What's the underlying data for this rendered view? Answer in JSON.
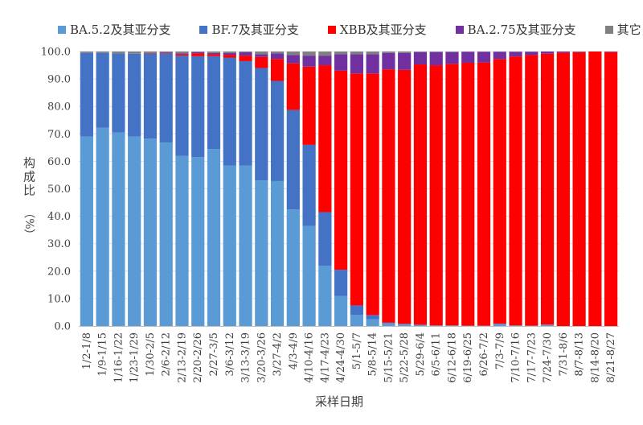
{
  "chart_data": {
    "type": "bar",
    "stacked": true,
    "title": "",
    "xlabel": "采样日期",
    "ylabel": "构成比（%）",
    "ylabel_main": "构成比",
    "ylabel_unit": "（%）",
    "ylim": [
      0,
      100
    ],
    "yticks": [
      "0.0",
      "10.0",
      "20.0",
      "30.0",
      "40.0",
      "50.0",
      "60.0",
      "70.0",
      "80.0",
      "90.0",
      "100.0"
    ],
    "legend_position": "top",
    "categories": [
      "1/2-1/8",
      "1/9-1/15",
      "1/16-1/22",
      "1/23-1/29",
      "1/30-2/5",
      "2/6-2/12",
      "2/13-2/19",
      "2/20-2/26",
      "2/27-3/5",
      "3/6-3/12",
      "3/13-3/19",
      "3/20-3/26",
      "3/27-4/2",
      "4/3-4/9",
      "4/10-4/16",
      "4/17-4/23",
      "4/24-4/30",
      "5/1-5/7",
      "5/8-5/14",
      "5/15-5/21",
      "5/22-5/28",
      "5/29-6/4",
      "6/5-6/11",
      "6/12-6/18",
      "6/19-6/25",
      "6/26-7/2",
      "7/3-7/9",
      "7/10-7/16",
      "7/17-7/23",
      "7/24-7/30",
      "7/31-8/6",
      "8/7-8/13",
      "8/14-8/20",
      "8/21-8/27"
    ],
    "series": [
      {
        "name": "BA.5.2及其亚分支",
        "color": "#5B9BD5",
        "values": [
          69,
          72.3,
          70.5,
          69,
          68.3,
          66.8,
          62,
          61.5,
          64.5,
          58.5,
          58.5,
          53,
          52.8,
          42.5,
          36.5,
          22,
          11,
          4,
          2.5,
          1,
          0.5,
          0.3,
          0.2,
          0.2,
          0.1,
          0.1,
          0.8,
          0.2,
          0.1,
          0.5,
          0,
          0,
          0,
          0
        ]
      },
      {
        "name": "BF.7及其亚分支",
        "color": "#4472C4",
        "values": [
          30.5,
          27.2,
          28.8,
          30.2,
          31,
          32.5,
          36.5,
          36.8,
          33.8,
          39.3,
          38,
          41,
          36.5,
          36.2,
          29.5,
          19.5,
          9.5,
          3.5,
          1.5,
          0.2,
          0.3,
          0.2,
          0,
          0,
          0,
          0,
          0,
          0,
          0,
          0,
          0,
          0,
          0,
          0
        ]
      },
      {
        "name": "XBB及其亚分支",
        "color": "#FF0000",
        "values": [
          0,
          0,
          0,
          0,
          0.2,
          0.2,
          0.5,
          1,
          0.7,
          1,
          2,
          4,
          8,
          17,
          28.5,
          53.5,
          72.5,
          84.5,
          88,
          92.3,
          92.5,
          94.8,
          94.8,
          95.3,
          95.8,
          95.9,
          96.5,
          98,
          98.6,
          98.7,
          99.6,
          99.7,
          100,
          99.8
        ]
      },
      {
        "name": "BA.2.75及其亚分支",
        "color": "#7030A0",
        "values": [
          0,
          0,
          0,
          0,
          0,
          0.2,
          0.3,
          0.5,
          0.5,
          0.7,
          1.2,
          1,
          2,
          3,
          4,
          3.5,
          6,
          7,
          7,
          6,
          6.2,
          4.5,
          4.8,
          4.3,
          4,
          3.9,
          2.6,
          1.7,
          1.2,
          0.8,
          0.4,
          0.2,
          0,
          0.2
        ]
      },
      {
        "name": "其它",
        "color": "#808080",
        "values": [
          0.5,
          0.5,
          0.7,
          0.8,
          0.5,
          0.3,
          0.7,
          0.2,
          0.5,
          0.5,
          0.3,
          1,
          0.7,
          1.3,
          1.5,
          1.5,
          1,
          1,
          1,
          0.5,
          0.5,
          0.2,
          0.2,
          0.2,
          0.1,
          0.1,
          0.1,
          0.1,
          0.1,
          0,
          0,
          0.1,
          0,
          0
        ]
      }
    ]
  }
}
